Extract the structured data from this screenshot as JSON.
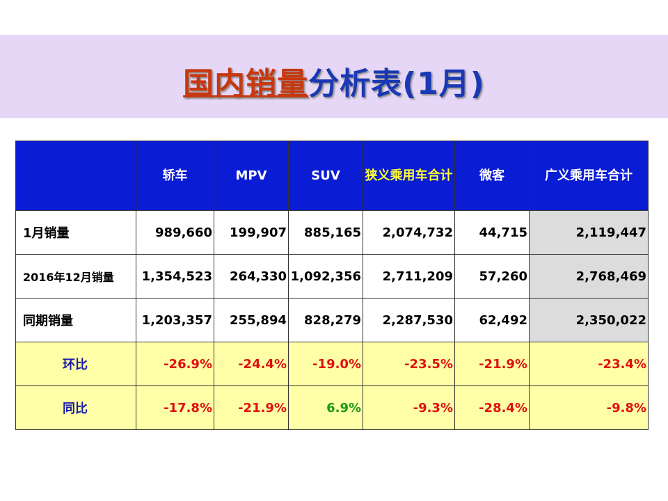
{
  "title": {
    "part_red": "国内销量",
    "part_blue": "分析表(1月)"
  },
  "table": {
    "headers": [
      "",
      "轿车",
      "MPV",
      "SUV",
      "狭义乘用车合计",
      "微客",
      "广义乘用车合计"
    ],
    "rows": [
      {
        "label": "1月销量",
        "values": [
          "989,660",
          "199,907",
          "885,165",
          "2,074,732",
          "44,715",
          "2,119,447"
        ]
      },
      {
        "label": "2016年12月销量",
        "values": [
          "1,354,523",
          "264,330",
          "1,092,356",
          "2,711,209",
          "57,260",
          "2,768,469"
        ]
      },
      {
        "label": "同期销量",
        "values": [
          "1,203,357",
          "255,894",
          "828,279",
          "2,287,530",
          "62,492",
          "2,350,022"
        ]
      },
      {
        "label": "环比",
        "values": [
          "-26.9%",
          "-24.4%",
          "-19.0%",
          "-23.5%",
          "-21.9%",
          "-23.4%"
        ]
      },
      {
        "label": "同比",
        "values": [
          "-17.8%",
          "-21.9%",
          "6.9%",
          "-9.3%",
          "-28.4%",
          "-9.8%"
        ]
      }
    ]
  },
  "colors": {
    "title_band": "#e6d7f7",
    "title_red": "#c8370e",
    "title_blue": "#1a38b3",
    "header_bg": "#0a1cd4",
    "header_highlight_text": "#ffff33",
    "pct_row_bg": "#ffffa8",
    "negative": "#e01010",
    "positive": "#1a9a1a",
    "total_col_bg": "#dcdcdc"
  }
}
